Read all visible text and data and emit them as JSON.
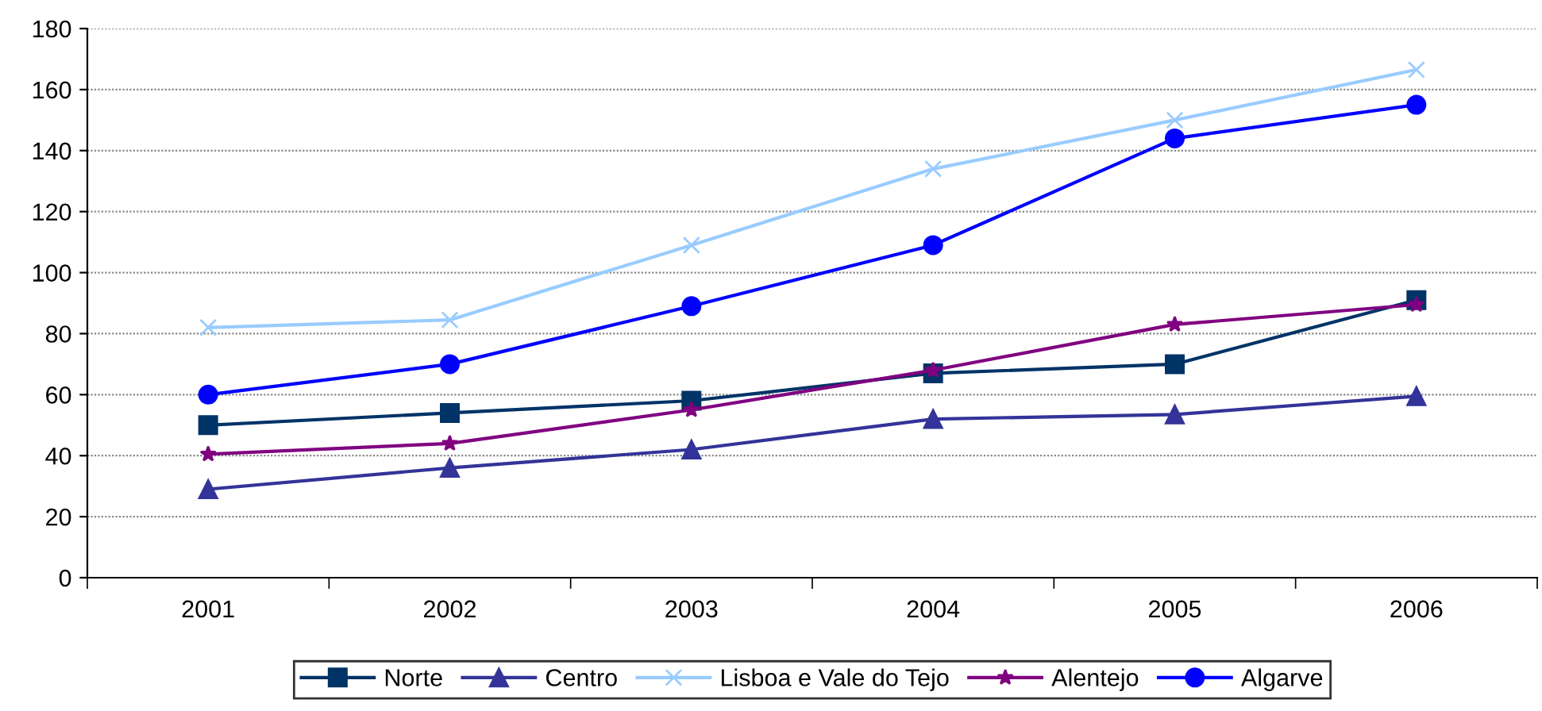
{
  "chart_data": {
    "type": "line",
    "categories": [
      "2001",
      "2002",
      "2003",
      "2004",
      "2005",
      "2006"
    ],
    "series": [
      {
        "name": "Norte",
        "color": "#003366",
        "marker": "square",
        "values": [
          50,
          54,
          58,
          67,
          70,
          91
        ]
      },
      {
        "name": "Centro",
        "color": "#333399",
        "marker": "triangle",
        "values": [
          29,
          36,
          42,
          52,
          53.5,
          59.5
        ]
      },
      {
        "name": "Lisboa e Vale do Tejo",
        "color": "#99ccff",
        "marker": "cross",
        "values": [
          82,
          84.5,
          109,
          134,
          150,
          166.5
        ]
      },
      {
        "name": "Alentejo",
        "color": "#800080",
        "marker": "star",
        "values": [
          40.5,
          44,
          55,
          68,
          83,
          89.5
        ]
      },
      {
        "name": "Algarve",
        "color": "#0000ff",
        "marker": "circle",
        "values": [
          60,
          70,
          89,
          109,
          144,
          155
        ]
      }
    ],
    "ylim": [
      0,
      180
    ],
    "yticks": [
      0,
      20,
      40,
      60,
      80,
      100,
      120,
      140,
      160,
      180
    ],
    "grid": "y",
    "legend": "bottom"
  }
}
